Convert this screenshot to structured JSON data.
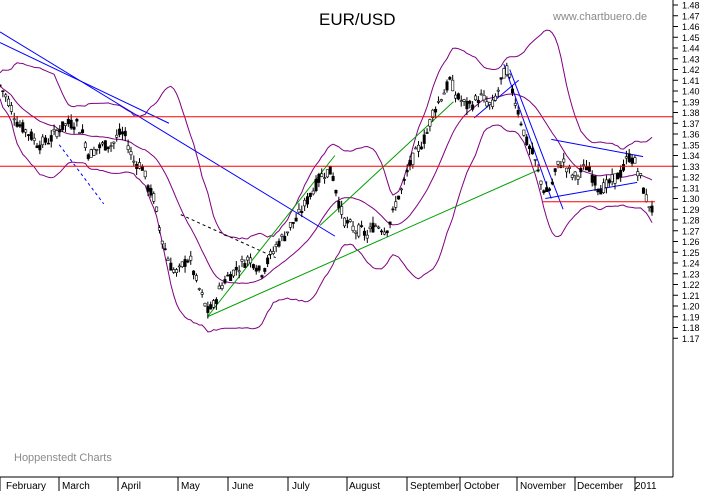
{
  "chart_data": {
    "type": "candlestick",
    "title": "EUR/USD",
    "watermark": "www.chartbuero.de",
    "source_credit": "Hoppenstedt Charts",
    "x_axis_labels": [
      "February",
      "March",
      "April",
      "May",
      "June",
      "July",
      "August",
      "September",
      "October",
      "November",
      "December",
      "2011"
    ],
    "y_ticks": [
      "1.48",
      "1.47",
      "1.46",
      "1.45",
      "1.44",
      "1.43",
      "1.42",
      "1.41",
      "1.40",
      "1.39",
      "1.38",
      "1.37",
      "1.36",
      "1.35",
      "1.34",
      "1.33",
      "1.32",
      "1.31",
      "1.30",
      "1.29",
      "1.28",
      "1.27",
      "1.26",
      "1.25",
      "1.24",
      "1.23",
      "1.22",
      "1.21",
      "1.20",
      "1.19",
      "1.18",
      "1.17"
    ],
    "ylim": [
      1.165,
      1.485
    ],
    "grid": false,
    "price_path": [
      {
        "t": 0,
        "v": 1.405
      },
      {
        "t": 0.3,
        "v": 1.39
      },
      {
        "t": 0.6,
        "v": 1.37
      },
      {
        "t": 1.0,
        "v": 1.36
      },
      {
        "t": 1.3,
        "v": 1.35
      },
      {
        "t": 1.7,
        "v": 1.355
      },
      {
        "t": 2.0,
        "v": 1.365
      },
      {
        "t": 2.3,
        "v": 1.37
      },
      {
        "t": 2.6,
        "v": 1.37
      },
      {
        "t": 2.8,
        "v": 1.36
      },
      {
        "t": 3.0,
        "v": 1.34
      },
      {
        "t": 3.2,
        "v": 1.345
      },
      {
        "t": 3.5,
        "v": 1.35
      },
      {
        "t": 3.8,
        "v": 1.35
      },
      {
        "t": 4.0,
        "v": 1.36
      },
      {
        "t": 4.2,
        "v": 1.36
      },
      {
        "t": 4.5,
        "v": 1.335
      },
      {
        "t": 4.8,
        "v": 1.33
      },
      {
        "t": 5.0,
        "v": 1.31
      },
      {
        "t": 5.2,
        "v": 1.3
      },
      {
        "t": 5.4,
        "v": 1.27
      },
      {
        "t": 5.6,
        "v": 1.25
      },
      {
        "t": 5.8,
        "v": 1.235
      },
      {
        "t": 6.0,
        "v": 1.23
      },
      {
        "t": 6.2,
        "v": 1.24
      },
      {
        "t": 6.4,
        "v": 1.245
      },
      {
        "t": 6.6,
        "v": 1.225
      },
      {
        "t": 6.8,
        "v": 1.21
      },
      {
        "t": 7.0,
        "v": 1.195
      },
      {
        "t": 7.2,
        "v": 1.2
      },
      {
        "t": 7.4,
        "v": 1.215
      },
      {
        "t": 7.6,
        "v": 1.225
      },
      {
        "t": 7.8,
        "v": 1.23
      },
      {
        "t": 8.0,
        "v": 1.235
      },
      {
        "t": 8.2,
        "v": 1.24
      },
      {
        "t": 8.4,
        "v": 1.245
      },
      {
        "t": 8.6,
        "v": 1.24
      },
      {
        "t": 8.8,
        "v": 1.23
      },
      {
        "t": 9.0,
        "v": 1.24
      },
      {
        "t": 9.2,
        "v": 1.25
      },
      {
        "t": 9.4,
        "v": 1.26
      },
      {
        "t": 9.6,
        "v": 1.265
      },
      {
        "t": 9.8,
        "v": 1.275
      },
      {
        "t": 10.0,
        "v": 1.28
      },
      {
        "t": 10.2,
        "v": 1.29
      },
      {
        "t": 10.4,
        "v": 1.3
      },
      {
        "t": 10.6,
        "v": 1.31
      },
      {
        "t": 10.8,
        "v": 1.32
      },
      {
        "t": 11.0,
        "v": 1.325
      },
      {
        "t": 11.2,
        "v": 1.325
      },
      {
        "t": 11.4,
        "v": 1.3
      },
      {
        "t": 11.6,
        "v": 1.28
      },
      {
        "t": 11.8,
        "v": 1.275
      },
      {
        "t": 12.0,
        "v": 1.27
      },
      {
        "t": 12.2,
        "v": 1.27
      },
      {
        "t": 12.4,
        "v": 1.265
      },
      {
        "t": 12.6,
        "v": 1.275
      },
      {
        "t": 12.8,
        "v": 1.275
      },
      {
        "t": 13.0,
        "v": 1.27
      },
      {
        "t": 13.2,
        "v": 1.28
      },
      {
        "t": 13.4,
        "v": 1.3
      },
      {
        "t": 13.6,
        "v": 1.31
      },
      {
        "t": 13.8,
        "v": 1.33
      },
      {
        "t": 14.0,
        "v": 1.34
      },
      {
        "t": 14.2,
        "v": 1.35
      },
      {
        "t": 14.4,
        "v": 1.36
      },
      {
        "t": 14.6,
        "v": 1.38
      },
      {
        "t": 14.8,
        "v": 1.39
      },
      {
        "t": 15.0,
        "v": 1.4
      },
      {
        "t": 15.2,
        "v": 1.41
      },
      {
        "t": 15.4,
        "v": 1.395
      },
      {
        "t": 15.6,
        "v": 1.39
      },
      {
        "t": 15.8,
        "v": 1.385
      },
      {
        "t": 16.0,
        "v": 1.39
      },
      {
        "t": 16.2,
        "v": 1.395
      },
      {
        "t": 16.4,
        "v": 1.39
      },
      {
        "t": 16.6,
        "v": 1.385
      },
      {
        "t": 16.8,
        "v": 1.4
      },
      {
        "t": 17.0,
        "v": 1.415
      },
      {
        "t": 17.1,
        "v": 1.42
      },
      {
        "t": 17.2,
        "v": 1.41
      },
      {
        "t": 17.4,
        "v": 1.39
      },
      {
        "t": 17.6,
        "v": 1.37
      },
      {
        "t": 17.8,
        "v": 1.35
      },
      {
        "t": 18.0,
        "v": 1.34
      },
      {
        "t": 18.2,
        "v": 1.32
      },
      {
        "t": 18.4,
        "v": 1.305
      },
      {
        "t": 18.6,
        "v": 1.31
      },
      {
        "t": 18.8,
        "v": 1.33
      },
      {
        "t": 19.0,
        "v": 1.335
      },
      {
        "t": 19.2,
        "v": 1.325
      },
      {
        "t": 19.4,
        "v": 1.32
      },
      {
        "t": 19.6,
        "v": 1.325
      },
      {
        "t": 19.8,
        "v": 1.33
      },
      {
        "t": 20.0,
        "v": 1.32
      },
      {
        "t": 20.2,
        "v": 1.31
      },
      {
        "t": 20.4,
        "v": 1.31
      },
      {
        "t": 20.6,
        "v": 1.315
      },
      {
        "t": 20.8,
        "v": 1.32
      },
      {
        "t": 21.0,
        "v": 1.325
      },
      {
        "t": 21.2,
        "v": 1.34
      },
      {
        "t": 21.4,
        "v": 1.335
      },
      {
        "t": 21.6,
        "v": 1.32
      },
      {
        "t": 21.8,
        "v": 1.3
      },
      {
        "t": 22.0,
        "v": 1.29
      }
    ],
    "horizontal_lines": [
      1.376,
      1.33,
      1.297
    ],
    "colors": {
      "candles": "#000000",
      "bands": "#800080",
      "resistance": "#ff0000",
      "downtrend": "#0000ff",
      "uptrend": "#00a000",
      "axis": "#000000"
    }
  }
}
